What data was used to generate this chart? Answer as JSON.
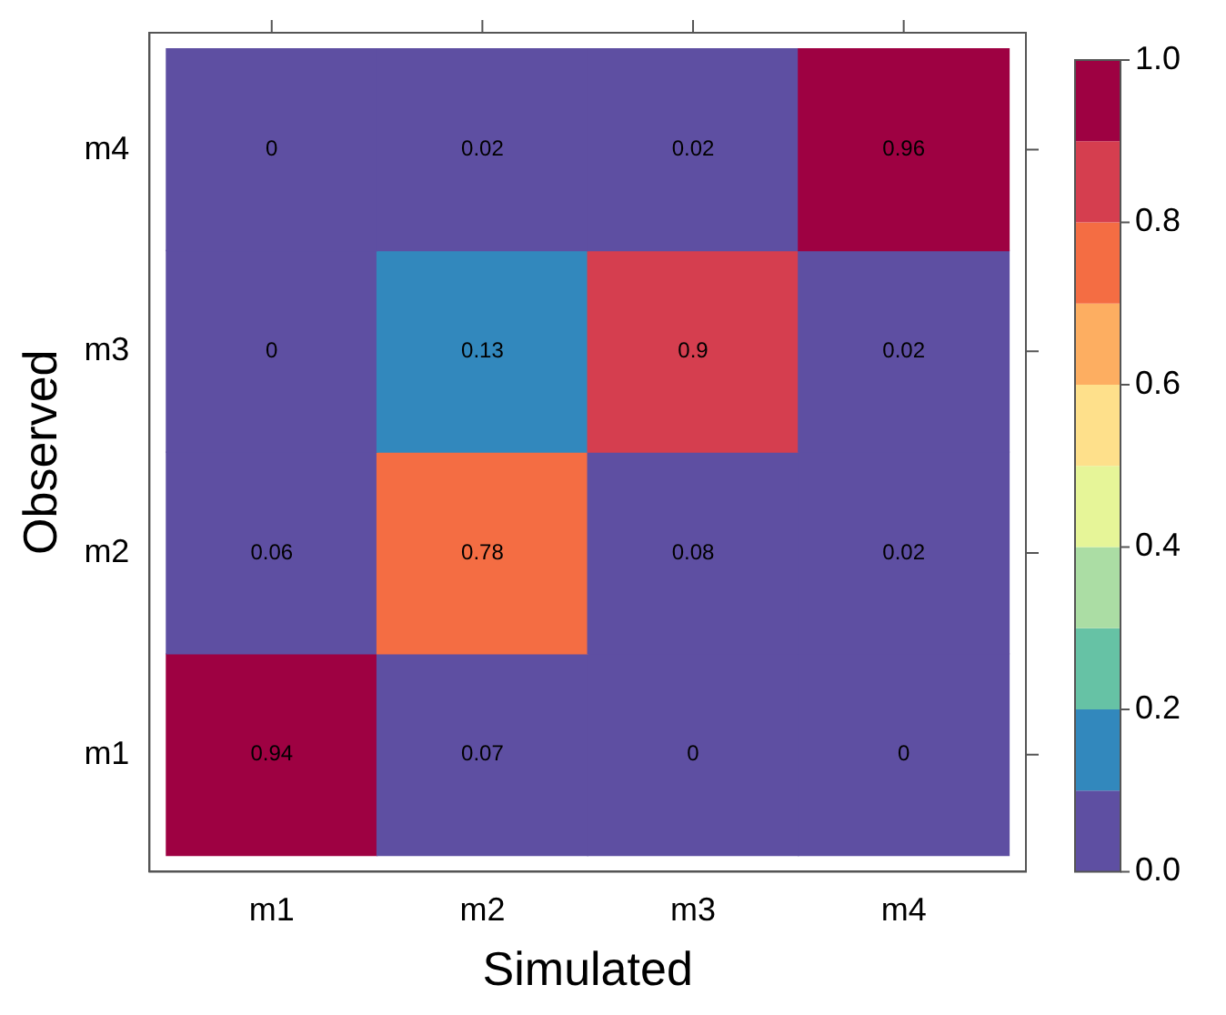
{
  "chart_data": {
    "type": "heatmap",
    "xlabel": "Simulated",
    "ylabel": "Observed",
    "categories": [
      "m1",
      "m2",
      "m3",
      "m4"
    ],
    "y_categories": [
      "m4",
      "m3",
      "m2",
      "m1"
    ],
    "cells": [
      [
        0,
        0.02,
        0.02,
        0.96
      ],
      [
        0,
        0.13,
        0.9,
        0.02
      ],
      [
        0.06,
        0.78,
        0.08,
        0.02
      ],
      [
        0.94,
        0.07,
        0,
        0
      ]
    ],
    "data_labels": true,
    "clim": [
      0,
      1
    ],
    "cticks": [
      {
        "value": 0,
        "label": "0.0"
      },
      0.2,
      0.4,
      0.6,
      0.8,
      {
        "value": 1,
        "label": "1.0"
      }
    ]
  }
}
